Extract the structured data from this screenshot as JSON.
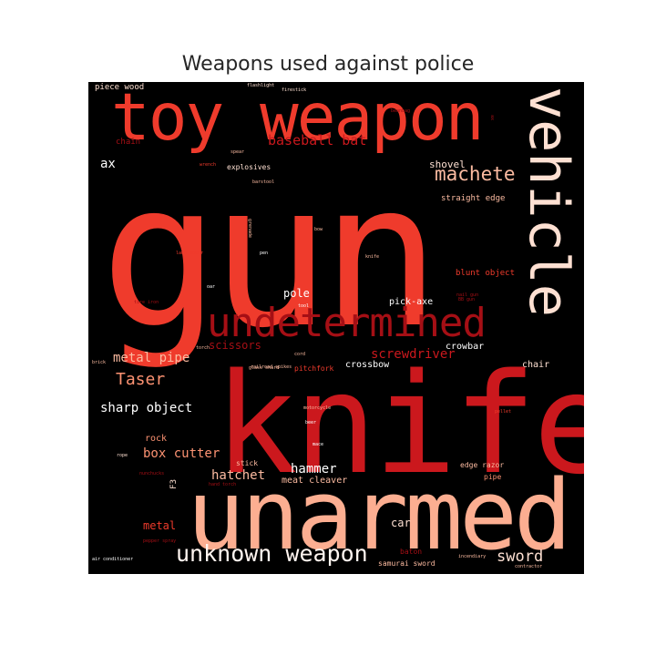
{
  "chart_data": {
    "type": "wordcloud",
    "title": "Weapons used against police",
    "colormap": "Reds",
    "background": "#000000",
    "words": [
      {
        "text": "gun",
        "color": "#ef3b2c"
      },
      {
        "text": "knife",
        "color": "#cb181d"
      },
      {
        "text": "unarmed",
        "color": "#fcae91"
      },
      {
        "text": "toy weapon",
        "color": "#ef3b2c"
      },
      {
        "text": "vehicle",
        "color": "#fee0d2"
      },
      {
        "text": "undetermined",
        "color": "#a50f15"
      },
      {
        "text": "unknown weapon",
        "color": "#fff5f0"
      },
      {
        "text": "machete",
        "color": "#fcbba1"
      },
      {
        "text": "baseball bat",
        "color": "#cb181d"
      },
      {
        "text": "Taser",
        "color": "#fc9272"
      },
      {
        "text": "metal pipe",
        "color": "#fcbba1"
      },
      {
        "text": "screwdriver",
        "color": "#cb181d"
      },
      {
        "text": "scissors",
        "color": "#a50f15"
      },
      {
        "text": "sharp object",
        "color": "#ffffff"
      },
      {
        "text": "hammer",
        "color": "#ffffff"
      },
      {
        "text": "hatchet",
        "color": "#fcbba1"
      },
      {
        "text": "box cutter",
        "color": "#fc9272"
      },
      {
        "text": "sword",
        "color": "#fee0d2"
      },
      {
        "text": "metal",
        "color": "#ef3b2c"
      },
      {
        "text": "car",
        "color": "#fee0d2"
      },
      {
        "text": "pole",
        "color": "#ffffff"
      },
      {
        "text": "pick-axe",
        "color": "#ffffff"
      },
      {
        "text": "ax",
        "color": "#ffffff"
      },
      {
        "text": "shovel",
        "color": "#fee0d2"
      },
      {
        "text": "crowbar",
        "color": "#ffffff"
      },
      {
        "text": "crossbow",
        "color": "#ffffff"
      },
      {
        "text": "chair",
        "color": "#fee0d2"
      },
      {
        "text": "rock",
        "color": "#fc9272"
      },
      {
        "text": "meat cleaver",
        "color": "#fcbba1"
      },
      {
        "text": "blunt object",
        "color": "#ef3b2c"
      },
      {
        "text": "straight edge",
        "color": "#fcbba1"
      },
      {
        "text": "edge razor",
        "color": "#fcbba1"
      },
      {
        "text": "piece wood",
        "color": "#fee0d2"
      },
      {
        "text": "chain",
        "color": "#a50f15"
      },
      {
        "text": "explosives",
        "color": "#fee0d2"
      },
      {
        "text": "stick",
        "color": "#fcbba1"
      },
      {
        "text": "pitchfork",
        "color": "#ef3b2c"
      },
      {
        "text": "pipe",
        "color": "#fc9272"
      },
      {
        "text": "baton",
        "color": "#a50f15"
      },
      {
        "text": "beer",
        "color": "#ffffff"
      },
      {
        "text": "flashlight",
        "color": "#fee0d2"
      },
      {
        "text": "firestick",
        "color": "#fee0d2"
      },
      {
        "text": "spear",
        "color": "#fcbba1"
      },
      {
        "text": "wrench",
        "color": "#ef3b2c"
      },
      {
        "text": "barstool",
        "color": "#fcbba1"
      },
      {
        "text": "lawn mower",
        "color": "#ef3b2c"
      },
      {
        "text": "glass shard",
        "color": "#fcbba1"
      },
      {
        "text": "hand torch",
        "color": "#a50f15"
      },
      {
        "text": "pellet",
        "color": "#ef3b2c"
      },
      {
        "text": "motorcycle",
        "color": "#fcbba1"
      },
      {
        "text": "nail gun",
        "color": "#a50f15"
      },
      {
        "text": "oar",
        "color": "#ffffff"
      },
      {
        "text": "pen",
        "color": "#ffffff"
      },
      {
        "text": "grenade",
        "color": "#fcbba1"
      },
      {
        "text": "bow",
        "color": "#fcbba1"
      },
      {
        "text": "brick",
        "color": "#fcbba1"
      },
      {
        "text": "torch",
        "color": "#fcbba1"
      },
      {
        "text": "knife",
        "color": "#fcbba1"
      },
      {
        "text": "railroad spikes",
        "color": "#fcbba1"
      },
      {
        "text": "BB gun",
        "color": "#a50f15"
      },
      {
        "text": "tire iron",
        "color": "#a50f15"
      },
      {
        "text": "rope",
        "color": "#fee0d2"
      },
      {
        "text": "mace",
        "color": "#ffffff"
      },
      {
        "text": "nunchucks",
        "color": "#a50f15"
      },
      {
        "text": "air conditioner",
        "color": "#ffffff"
      },
      {
        "text": "samurai sword",
        "color": "#fcbba1"
      },
      {
        "text": "incendiary",
        "color": "#fcbba1"
      },
      {
        "text": "pepper spray",
        "color": "#a50f15"
      },
      {
        "text": "beanbag",
        "color": "#a50f15"
      },
      {
        "text": "contractor",
        "color": "#fcbba1"
      },
      {
        "text": "ax",
        "color": "#a50f15"
      },
      {
        "text": "tool",
        "color": "#ffffff"
      },
      {
        "text": "cord",
        "color": "#fcbba1"
      },
      {
        "text": "F3",
        "color": "#fee0d2"
      }
    ]
  }
}
